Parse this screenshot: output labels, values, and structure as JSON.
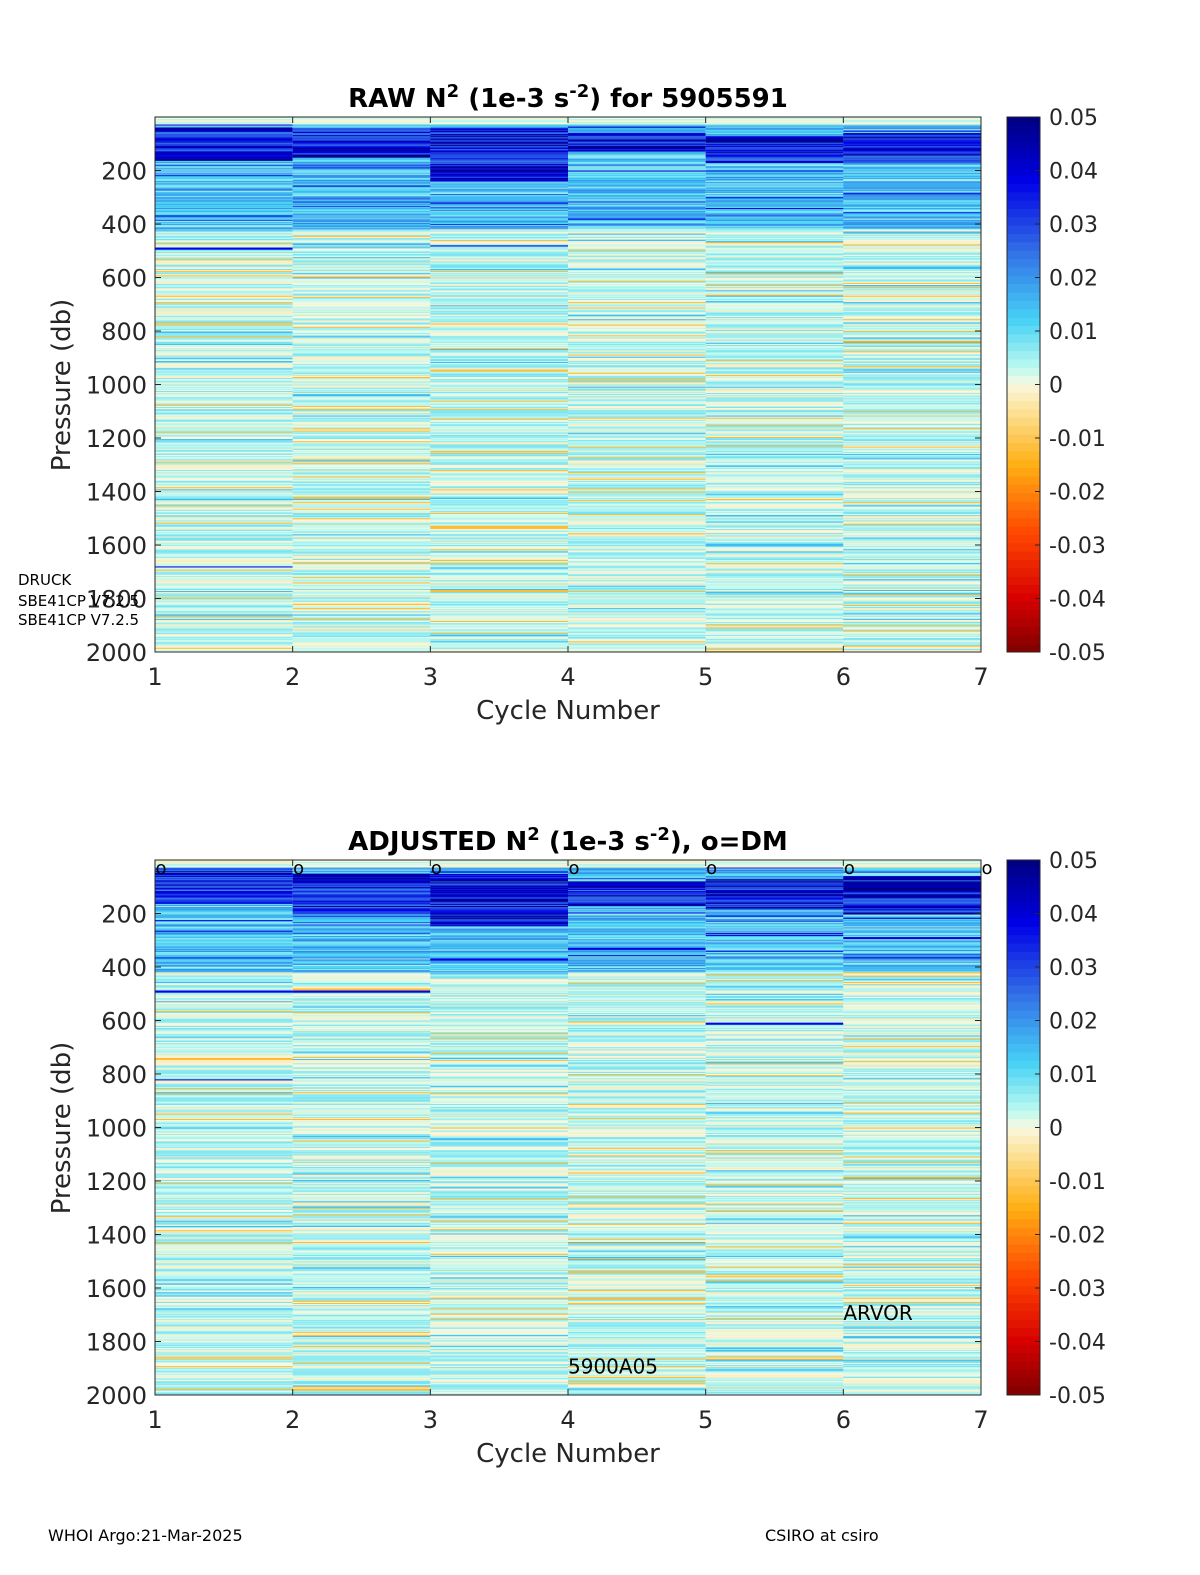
{
  "chart_data": [
    {
      "type": "heatmap",
      "title": "RAW N",
      "title_sup1": "2",
      "title_mid": " (1e-3 s",
      "title_sup2": "-2",
      "title_end": ") for 5905591",
      "xlabel": "Cycle Number",
      "ylabel": "Pressure (db)",
      "x_ticks": [
        1,
        2,
        3,
        4,
        5,
        6,
        7
      ],
      "y_ticks": [
        200,
        400,
        600,
        800,
        1000,
        1200,
        1400,
        1600,
        1800,
        2000
      ],
      "xlim": [
        1,
        7
      ],
      "ylim": [
        0,
        2000
      ],
      "y_reversed": true,
      "cycles": [
        1,
        2,
        3,
        4,
        5,
        6
      ],
      "colorbar": {
        "ticks": [
          0.05,
          0.04,
          0.03,
          0.02,
          0.01,
          0,
          -0.01,
          -0.02,
          -0.03,
          -0.04,
          -0.05
        ],
        "range": [
          -0.05,
          0.05
        ],
        "colormap": "jet-reversed"
      },
      "profile_features": [
        {
          "cycle": 1,
          "strong_positive_band_db": [
            40,
            160
          ],
          "notable_lines_db": [
            490,
            1680
          ]
        },
        {
          "cycle": 2,
          "strong_positive_band_db": [
            40,
            150
          ],
          "notable_lines_db": []
        },
        {
          "cycle": 3,
          "strong_positive_band_db": [
            40,
            240
          ],
          "notable_lines_db": [
            320,
            480
          ]
        },
        {
          "cycle": 4,
          "strong_positive_band_db": [
            60,
            130
          ],
          "notable_lines_db": []
        },
        {
          "cycle": 5,
          "strong_positive_band_db": [
            70,
            170
          ],
          "notable_lines_db": [
            300
          ]
        },
        {
          "cycle": 6,
          "strong_positive_band_db": [
            60,
            170
          ],
          "notable_lines_db": []
        }
      ],
      "annotations": [
        "DRUCK",
        "SBE41CP V7.2.5",
        "SBE41CP V7.2.5"
      ],
      "annotation_tick_overlap": "1800"
    },
    {
      "type": "heatmap",
      "title": "ADJUSTED N",
      "title_sup1": "2",
      "title_mid": " (1e-3 s",
      "title_sup2": "-2",
      "title_end": "), o=DM",
      "xlabel": "Cycle Number",
      "ylabel": "Pressure (db)",
      "x_ticks": [
        1,
        2,
        3,
        4,
        5,
        6,
        7
      ],
      "y_ticks": [
        200,
        400,
        600,
        800,
        1000,
        1200,
        1400,
        1600,
        1800,
        2000
      ],
      "xlim": [
        1,
        7
      ],
      "ylim": [
        0,
        2000
      ],
      "y_reversed": true,
      "cycles": [
        1,
        2,
        3,
        4,
        5,
        6
      ],
      "dm_markers": {
        "symbol": "o",
        "cycles": [
          1,
          2,
          3,
          4,
          5,
          6,
          7
        ],
        "pressure_db": 15
      },
      "colorbar": {
        "ticks": [
          0.05,
          0.04,
          0.03,
          0.02,
          0.01,
          0,
          -0.01,
          -0.02,
          -0.03,
          -0.04,
          -0.05
        ],
        "range": [
          -0.05,
          0.05
        ],
        "colormap": "jet-reversed"
      },
      "profile_features": [
        {
          "cycle": 1,
          "strong_positive_band_db": [
            40,
            160
          ],
          "notable_lines_db": [
            490,
            820
          ]
        },
        {
          "cycle": 2,
          "strong_positive_band_db": [
            50,
            200
          ],
          "notable_lines_db": [
            490
          ]
        },
        {
          "cycle": 3,
          "strong_positive_band_db": [
            50,
            240
          ],
          "notable_lines_db": [
            370
          ]
        },
        {
          "cycle": 4,
          "strong_positive_band_db": [
            80,
            170
          ],
          "notable_lines_db": [
            330
          ]
        },
        {
          "cycle": 5,
          "strong_positive_band_db": [
            70,
            180
          ],
          "notable_lines_db": [
            280,
            610
          ]
        },
        {
          "cycle": 6,
          "strong_positive_band_db": [
            60,
            200
          ],
          "notable_lines_db": [
            290
          ]
        }
      ],
      "annotations": [
        {
          "text": "5900A05",
          "x": 4,
          "y": 1920
        },
        {
          "text": "ARVOR",
          "x": 6,
          "y": 1720
        }
      ]
    }
  ],
  "footer": {
    "left": "WHOI Argo:21-Mar-2025",
    "right": "CSIRO at csiro"
  },
  "colors": {
    "axis": "#262626",
    "text": "#000000"
  }
}
